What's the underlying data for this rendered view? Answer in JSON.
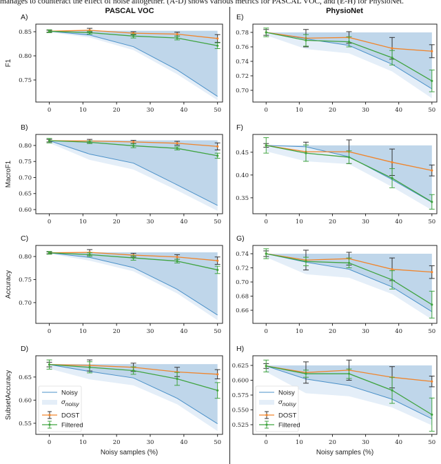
{
  "caption": "manages to counteract the effect of noise altogether. (A-D) shows various metrics for PASCAL VOC, and (E-H) for PhysioNet.",
  "columns": [
    "PASCAL VOC",
    "PhysioNet"
  ],
  "colors": {
    "noisy": "#4a90c8",
    "band": "#bfd6ea",
    "band_light": "#e4eef8",
    "dost": "#f0842a",
    "filtered": "#3fa33f",
    "errbar_dost": "#333333",
    "errbar_filtered": "#3fa33f"
  },
  "legend": {
    "noisy": "Noisy",
    "sigma": "σ",
    "sigma_sub": "noisy",
    "dost": "DOST",
    "filtered": "Filtered"
  },
  "chart_data": [
    {
      "id": "A",
      "panel_label": "A)",
      "dataset": "PASCAL VOC",
      "type": "line",
      "title": "",
      "xlabel": "",
      "ylabel": "F1",
      "x": [
        0,
        12,
        25,
        38,
        50
      ],
      "xticks": [
        0,
        10,
        20,
        30,
        40,
        50
      ],
      "xlim": [
        -4,
        51.5
      ],
      "yticks": [
        0.75,
        0.8,
        0.85
      ],
      "ytick_labels": [
        "0.75",
        "0.80",
        "0.85"
      ],
      "ylim": [
        0.7043,
        0.8657
      ],
      "series": [
        {
          "name": "Noisy",
          "values": [
            0.851,
            0.843,
            0.819,
            0.771,
            0.716
          ]
        },
        {
          "name": "Noisy lower band",
          "values": [
            0.849,
            0.838,
            0.812,
            0.762,
            0.708
          ]
        },
        {
          "name": "DOST",
          "values": [
            0.851,
            0.853,
            0.847,
            0.845,
            0.836
          ],
          "err": [
            0.002,
            0.004,
            0.003,
            0.004,
            0.008
          ]
        },
        {
          "name": "Filtered",
          "values": [
            0.851,
            0.848,
            0.841,
            0.837,
            0.821
          ],
          "err": [
            0.003,
            0.003,
            0.004,
            0.004,
            0.006
          ]
        }
      ],
      "band_top": 0.852,
      "legend": false
    },
    {
      "id": "B",
      "panel_label": "B)",
      "dataset": "PASCAL VOC",
      "type": "line",
      "title": "",
      "xlabel": "",
      "ylabel": "MacroF1",
      "x": [
        0,
        12,
        25,
        38,
        50
      ],
      "xticks": [
        0,
        10,
        20,
        30,
        40,
        50
      ],
      "xlim": [
        -4,
        51.5
      ],
      "yticks": [
        0.6,
        0.65,
        0.7,
        0.75,
        0.8
      ],
      "ytick_labels": [
        "0.60",
        "0.65",
        "0.70",
        "0.75",
        "0.80"
      ],
      "ylim": [
        0.587,
        0.8344
      ],
      "series": [
        {
          "name": "Noisy",
          "values": [
            0.815,
            0.773,
            0.745,
            0.677,
            0.613
          ]
        },
        {
          "name": "Noisy lower band",
          "values": [
            0.808,
            0.755,
            0.725,
            0.66,
            0.596
          ]
        },
        {
          "name": "DOST",
          "values": [
            0.815,
            0.814,
            0.811,
            0.807,
            0.797
          ],
          "err": [
            0.004,
            0.005,
            0.005,
            0.006,
            0.011
          ]
        },
        {
          "name": "Filtered",
          "values": [
            0.815,
            0.81,
            0.799,
            0.791,
            0.768
          ],
          "err": [
            0.007,
            0.004,
            0.006,
            0.005,
            0.008
          ]
        }
      ],
      "band_top": 0.816,
      "legend": false
    },
    {
      "id": "C",
      "panel_label": "C)",
      "dataset": "PASCAL VOC",
      "type": "line",
      "title": "",
      "xlabel": "",
      "ylabel": "Accuracy",
      "x": [
        0,
        12,
        25,
        38,
        50
      ],
      "xticks": [
        0,
        10,
        20,
        30,
        40,
        50
      ],
      "xlim": [
        -4,
        51.5
      ],
      "yticks": [
        0.7,
        0.75,
        0.8
      ],
      "ytick_labels": [
        "0.70",
        "0.75",
        "0.80"
      ],
      "ylim": [
        0.655,
        0.824
      ],
      "series": [
        {
          "name": "Noisy",
          "values": [
            0.808,
            0.798,
            0.776,
            0.729,
            0.673
          ]
        },
        {
          "name": "Noisy lower band",
          "values": [
            0.806,
            0.791,
            0.768,
            0.72,
            0.662
          ]
        },
        {
          "name": "DOST",
          "values": [
            0.808,
            0.809,
            0.803,
            0.799,
            0.791
          ],
          "err": [
            0.002,
            0.006,
            0.004,
            0.005,
            0.008
          ]
        },
        {
          "name": "Filtered",
          "values": [
            0.808,
            0.804,
            0.797,
            0.79,
            0.771
          ],
          "err": [
            0.003,
            0.004,
            0.005,
            0.004,
            0.008
          ]
        }
      ],
      "band_top": 0.809,
      "legend": false
    },
    {
      "id": "D",
      "panel_label": "D)",
      "dataset": "PASCAL VOC",
      "type": "line",
      "title": "",
      "xlabel": "Noisy samples (%)",
      "ylabel": "SubsetAccuracy",
      "x": [
        0,
        12,
        25,
        38,
        50
      ],
      "xticks": [
        0,
        10,
        20,
        30,
        40,
        50
      ],
      "xlim": [
        -4,
        51.5
      ],
      "yticks": [
        0.55,
        0.6,
        0.65
      ],
      "ytick_labels": [
        "0.55",
        "0.60",
        "0.65"
      ],
      "ylim": [
        0.526,
        0.696
      ],
      "series": [
        {
          "name": "Noisy",
          "values": [
            0.677,
            0.662,
            0.648,
            0.604,
            0.549
          ]
        },
        {
          "name": "Noisy lower band",
          "values": [
            0.668,
            0.645,
            0.632,
            0.591,
            0.533
          ]
        },
        {
          "name": "DOST",
          "values": [
            0.677,
            0.675,
            0.671,
            0.661,
            0.656
          ],
          "err": [
            0.005,
            0.012,
            0.009,
            0.01,
            0.01
          ]
        },
        {
          "name": "Filtered",
          "values": [
            0.677,
            0.671,
            0.664,
            0.646,
            0.621
          ],
          "err": [
            0.01,
            0.012,
            0.008,
            0.014,
            0.017
          ]
        }
      ],
      "band_top": 0.678,
      "legend": true,
      "legend_loc": "lower-left"
    },
    {
      "id": "E",
      "panel_label": "E)",
      "dataset": "PhysioNet",
      "type": "line",
      "title": "",
      "xlabel": "",
      "ylabel": "",
      "x": [
        0,
        12,
        25,
        38,
        50
      ],
      "xticks": [
        0,
        10,
        20,
        30,
        40,
        50
      ],
      "xlim": [
        -4,
        51.5
      ],
      "yticks": [
        0.7,
        0.72,
        0.74,
        0.76,
        0.78
      ],
      "ytick_labels": [
        "0.70",
        "0.72",
        "0.74",
        "0.76",
        "0.78"
      ],
      "ylim": [
        0.6838,
        0.7914
      ],
      "series": [
        {
          "name": "Noisy",
          "values": [
            0.78,
            0.771,
            0.762,
            0.736,
            0.702
          ]
        },
        {
          "name": "Noisy lower band",
          "values": [
            0.776,
            0.757,
            0.751,
            0.726,
            0.689
          ]
        },
        {
          "name": "DOST",
          "values": [
            0.78,
            0.772,
            0.773,
            0.758,
            0.754
          ],
          "err": [
            0.004,
            0.012,
            0.008,
            0.015,
            0.009
          ]
        },
        {
          "name": "Filtered",
          "values": [
            0.78,
            0.769,
            0.767,
            0.745,
            0.713
          ],
          "err": [
            0.006,
            0.008,
            0.007,
            0.01,
            0.015
          ]
        }
      ],
      "band_top": 0.78,
      "legend": false
    },
    {
      "id": "F",
      "panel_label": "F)",
      "dataset": "PhysioNet",
      "type": "line",
      "title": "",
      "xlabel": "",
      "ylabel": "",
      "x": [
        0,
        12,
        25,
        38,
        50
      ],
      "xticks": [
        0,
        10,
        20,
        30,
        40,
        50
      ],
      "xlim": [
        -4,
        51.5
      ],
      "yticks": [
        0.35,
        0.4,
        0.45
      ],
      "ytick_labels": [
        "0.35",
        "0.40",
        "0.45"
      ],
      "ylim": [
        0.315,
        0.489
      ],
      "series": [
        {
          "name": "Noisy",
          "values": [
            0.465,
            0.462,
            0.44,
            0.39,
            0.34
          ]
        },
        {
          "name": "Noisy lower band",
          "values": [
            0.452,
            0.43,
            0.424,
            0.374,
            0.323
          ]
        },
        {
          "name": "DOST",
          "values": [
            0.465,
            0.451,
            0.451,
            0.428,
            0.41
          ],
          "err": [
            0.004,
            0.021,
            0.026,
            0.029,
            0.012
          ]
        },
        {
          "name": "Filtered",
          "values": [
            0.465,
            0.448,
            0.439,
            0.393,
            0.341
          ],
          "err": [
            0.017,
            0.018,
            0.014,
            0.021,
            0.016
          ]
        }
      ],
      "band_top": 0.465,
      "legend": false
    },
    {
      "id": "G",
      "panel_label": "G)",
      "dataset": "PhysioNet",
      "type": "line",
      "title": "",
      "xlabel": "",
      "ylabel": "",
      "x": [
        0,
        12,
        25,
        38,
        50
      ],
      "xticks": [
        0,
        10,
        20,
        30,
        40,
        50
      ],
      "xlim": [
        -4,
        51.5
      ],
      "yticks": [
        0.66,
        0.68,
        0.7,
        0.72,
        0.74
      ],
      "ytick_labels": [
        "0.66",
        "0.68",
        "0.70",
        "0.72",
        "0.74"
      ],
      "ylim": [
        0.6415,
        0.7517
      ],
      "series": [
        {
          "name": "Noisy",
          "values": [
            0.74,
            0.728,
            0.718,
            0.693,
            0.658
          ]
        },
        {
          "name": "Noisy lower band",
          "values": [
            0.735,
            0.711,
            0.706,
            0.683,
            0.647
          ]
        },
        {
          "name": "DOST",
          "values": [
            0.74,
            0.731,
            0.733,
            0.718,
            0.714
          ],
          "err": [
            0.004,
            0.014,
            0.009,
            0.016,
            0.009
          ]
        },
        {
          "name": "Filtered",
          "values": [
            0.74,
            0.729,
            0.727,
            0.703,
            0.668
          ],
          "err": [
            0.007,
            0.006,
            0.007,
            0.013,
            0.019
          ]
        }
      ],
      "band_top": 0.74,
      "legend": false
    },
    {
      "id": "H",
      "panel_label": "H)",
      "dataset": "PhysioNet",
      "type": "line",
      "title": "",
      "xlabel": "Noisy samples (%)",
      "ylabel": "",
      "x": [
        0,
        12,
        25,
        38,
        50
      ],
      "xticks": [
        0,
        10,
        20,
        30,
        40,
        50
      ],
      "xlim": [
        -4,
        51.5
      ],
      "yticks": [
        0.525,
        0.55,
        0.575,
        0.6,
        0.625
      ],
      "ytick_labels": [
        "0.525",
        "0.550",
        "0.575",
        "0.600",
        "0.625"
      ],
      "ylim": [
        0.5087,
        0.6413
      ],
      "series": [
        {
          "name": "Noisy",
          "values": [
            0.624,
            0.602,
            0.591,
            0.568,
            0.535
          ]
        },
        {
          "name": "Noisy lower band",
          "values": [
            0.614,
            0.578,
            0.573,
            0.554,
            0.524
          ]
        },
        {
          "name": "DOST",
          "values": [
            0.624,
            0.613,
            0.617,
            0.605,
            0.598
          ],
          "err": [
            0.004,
            0.018,
            0.017,
            0.018,
            0.009
          ]
        },
        {
          "name": "Filtered",
          "values": [
            0.624,
            0.611,
            0.611,
            0.583,
            0.542
          ],
          "err": [
            0.01,
            0.006,
            0.008,
            0.022,
            0.028
          ]
        }
      ],
      "band_top": 0.625,
      "legend": true,
      "legend_loc": "lower-left"
    }
  ]
}
